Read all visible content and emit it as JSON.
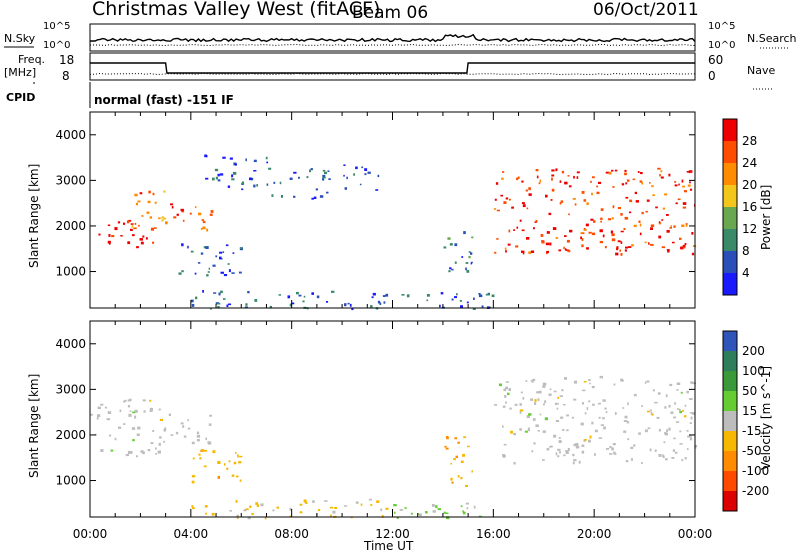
{
  "header": {
    "title": "Christmas Valley West (fitACF)",
    "beam": "Beam 06",
    "date": "06/Oct/2011"
  },
  "status_panels": {
    "nsky_label": "N.Sky",
    "nsearch_label": "N.Search",
    "freq_label_line1": "Freq.",
    "freq_label_line2": "[MHz]",
    "nave_label": "Nave",
    "cpid_label": "CPID",
    "cpid_text": "normal (fast) -151 IF",
    "noise_ticks_left": [
      "10^5",
      "10^0"
    ],
    "noise_ticks_right": [
      "10^5",
      "10^0"
    ],
    "freq_ticks": [
      "18",
      "8"
    ],
    "nave_ticks": [
      "60",
      "0"
    ]
  },
  "colors": {
    "power_scale": [
      "#1a1aff",
      "#2a4fb8",
      "#3a8a6a",
      "#6aa84f",
      "#f3c61b",
      "#ff8c00",
      "#ff4d00",
      "#ee0000"
    ],
    "velocity_scale": [
      "#2f55b8",
      "#2e7d5b",
      "#3a9a3a",
      "#66cc33",
      "#bdbdbd",
      "#f6b800",
      "#ff8c00",
      "#ff4a00",
      "#dd0000"
    ]
  },
  "chart_data": [
    {
      "type": "heatmap",
      "panel": "power",
      "ylabel": "Slant Range [km]",
      "xlabel": "",
      "x_ticks": [
        "00:00",
        "04:00",
        "08:00",
        "12:00",
        "16:00",
        "20:00",
        "00:00"
      ],
      "y_ticks": [
        1000,
        2000,
        3000,
        4000
      ],
      "ylim": [
        200,
        4500
      ],
      "xlim_hours": [
        0,
        24
      ],
      "colorbar": {
        "label": "Power [dB]",
        "ticks": [
          "4",
          "8",
          "12",
          "16",
          "20",
          "24",
          "28"
        ],
        "range": [
          0,
          30
        ]
      },
      "regions": [
        {
          "t0": 0.0,
          "t1": 3.0,
          "r_low": 1550,
          "r_high": 2150,
          "value": 28
        },
        {
          "t0": 1.5,
          "t1": 3.0,
          "r_low": 1900,
          "r_high": 2800,
          "value": 22
        },
        {
          "t0": 3.1,
          "t1": 4.8,
          "r_low": 1800,
          "r_high": 2500,
          "value": 24
        },
        {
          "t0": 3.5,
          "t1": 6.0,
          "r_low": 900,
          "r_high": 1700,
          "value": 5
        },
        {
          "t0": 4.5,
          "t1": 7.0,
          "r_low": 2800,
          "r_high": 3600,
          "value": 5
        },
        {
          "t0": 7.0,
          "t1": 9.5,
          "r_low": 2600,
          "r_high": 3300,
          "value": 6
        },
        {
          "t0": 10.0,
          "t1": 11.5,
          "r_low": 2800,
          "r_high": 3400,
          "value": 5
        },
        {
          "t0": 14.0,
          "t1": 15.2,
          "r_low": 900,
          "r_high": 2000,
          "value": 8
        },
        {
          "t0": 16.0,
          "t1": 24.0,
          "r_low": 1400,
          "r_high": 3300,
          "value": 26
        },
        {
          "t0": 4.0,
          "t1": 16.0,
          "r_low": 200,
          "r_high": 600,
          "value": 6
        }
      ]
    },
    {
      "type": "heatmap",
      "panel": "velocity",
      "ylabel": "Slant Range [km]",
      "xlabel": "Time UT",
      "x_ticks": [
        "00:00",
        "04:00",
        "08:00",
        "12:00",
        "16:00",
        "20:00",
        "00:00"
      ],
      "y_ticks": [
        1000,
        2000,
        3000,
        4000
      ],
      "ylim": [
        200,
        4500
      ],
      "xlim_hours": [
        0,
        24
      ],
      "colorbar": {
        "label": "Velocity [m s^-1]",
        "ticks": [
          "200",
          "100",
          "50",
          "15",
          "-15",
          "-50",
          "-100",
          "-200"
        ],
        "range": [
          -250,
          250
        ]
      },
      "regions": [
        {
          "t0": 0.0,
          "t1": 3.0,
          "r_low": 1550,
          "r_high": 2800,
          "value": 0
        },
        {
          "t0": 3.1,
          "t1": 4.8,
          "r_low": 1800,
          "r_high": 2500,
          "value": 0
        },
        {
          "t0": 4.0,
          "t1": 6.0,
          "r_low": 900,
          "r_high": 1700,
          "value": -60
        },
        {
          "t0": 14.0,
          "t1": 15.2,
          "r_low": 900,
          "r_high": 2000,
          "value": -80
        },
        {
          "t0": 16.0,
          "t1": 24.0,
          "r_low": 1400,
          "r_high": 3300,
          "value": 0
        },
        {
          "t0": 4.0,
          "t1": 12.0,
          "r_low": 200,
          "r_high": 600,
          "value": -40
        },
        {
          "t0": 12.0,
          "t1": 16.0,
          "r_low": 200,
          "r_high": 600,
          "value": 40
        }
      ]
    }
  ]
}
